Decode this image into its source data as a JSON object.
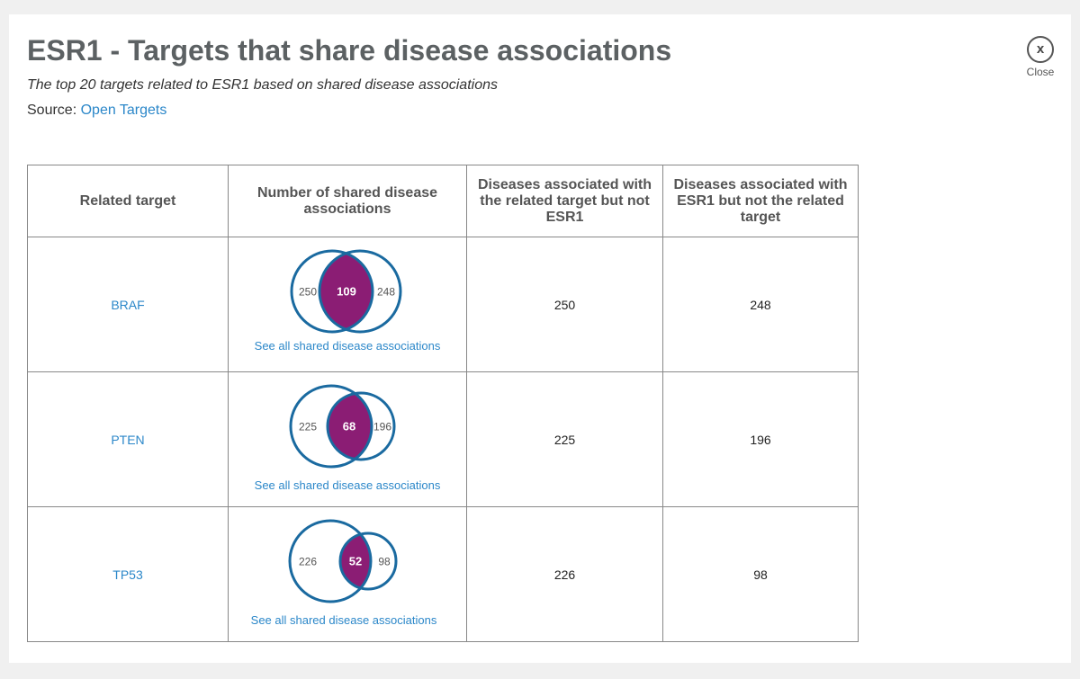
{
  "header": {
    "title": "ESR1 - Targets that share disease associations",
    "subtitle": "The top 20 targets related to ESR1 based on shared disease associations",
    "source_label": "Source: ",
    "source_link": "Open Targets",
    "close_label": "Close",
    "close_symbol": "x"
  },
  "table": {
    "columns": [
      "Related target",
      "Number of shared disease associations",
      "Diseases associated with the related target but not ESR1",
      "Diseases associated with ESR1 but not the related target"
    ],
    "link_text": "See all shared disease associations",
    "rows": [
      {
        "target": "BRAF",
        "left_only": "250",
        "shared": "109",
        "right_only": "248",
        "col3": "250",
        "col4": "248"
      },
      {
        "target": "PTEN",
        "left_only": "225",
        "shared": "68",
        "right_only": "196",
        "col3": "225",
        "col4": "196"
      },
      {
        "target": "TP53",
        "left_only": "226",
        "shared": "52",
        "right_only": "98",
        "col3": "226",
        "col4": "98"
      }
    ]
  },
  "colors": {
    "circle_stroke": "#1a6aa0",
    "intersection_fill": "#8b1d74",
    "link": "#2b87c9"
  }
}
